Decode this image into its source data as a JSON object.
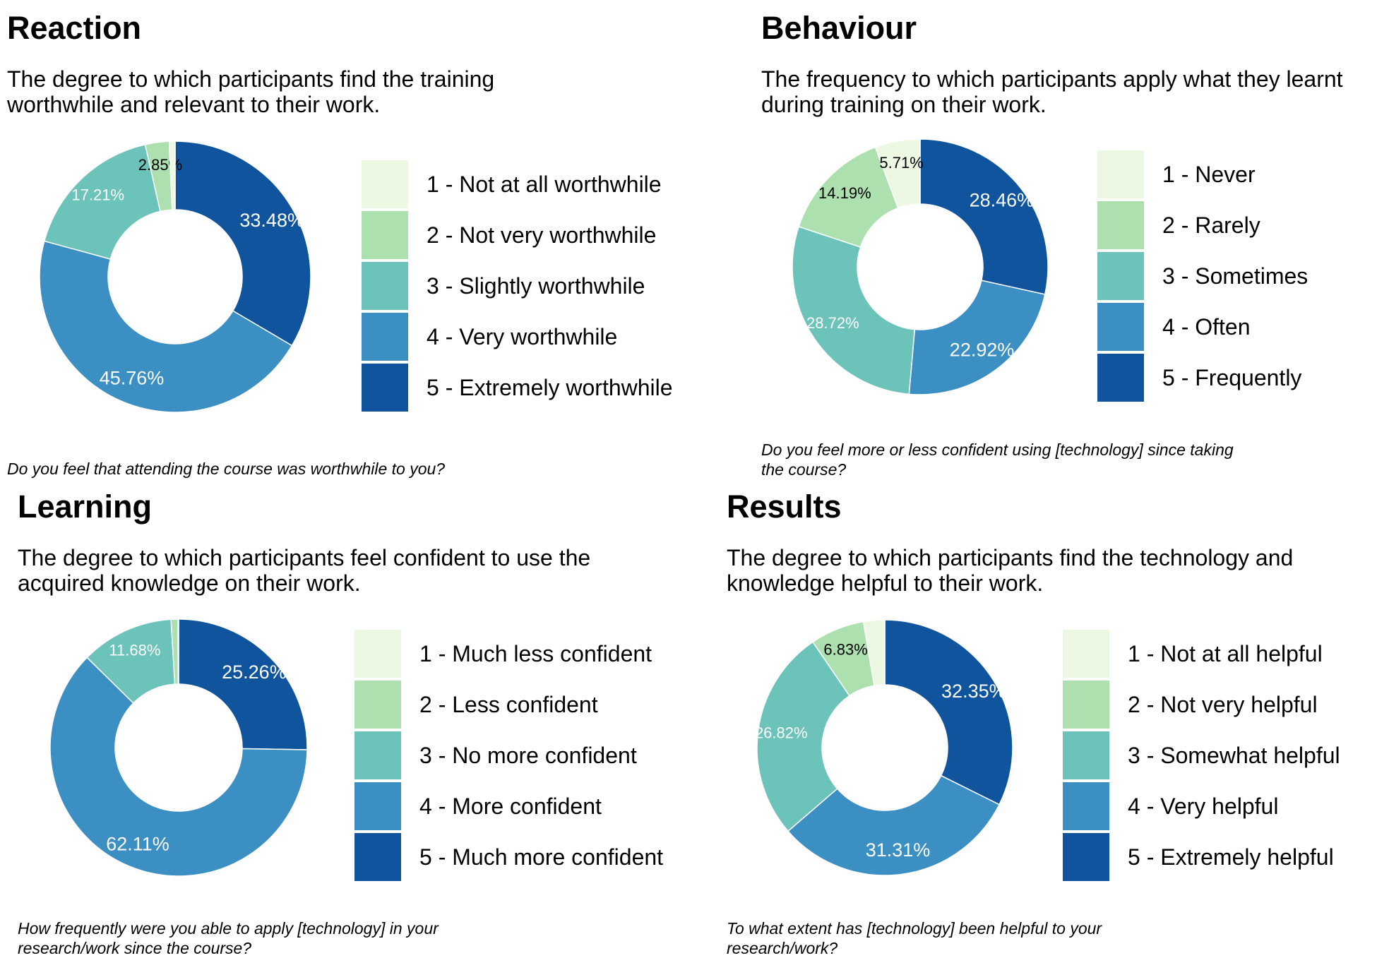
{
  "panels": [
    {
      "id": "reaction",
      "title": "Reaction",
      "subtitle": "The degree to which participants find the training worthwhile and relevant to their work.",
      "question": "Do you feel that attending the course was worthwhile to you?",
      "legend": [
        {
          "label": "1 - Not at all worthwhile"
        },
        {
          "label": "2 - Not very worthwhile"
        },
        {
          "label": "3 - Slightly worthwhile"
        },
        {
          "label": "4 - Very worthwhile"
        },
        {
          "label": "5 - Extremely worthwhile"
        }
      ]
    },
    {
      "id": "behaviour",
      "title": "Behaviour",
      "subtitle": "The frequency to which participants apply what they learnt during training on their work.",
      "question": "Do you feel more or less confident using [technology] since taking the course?",
      "legend": [
        {
          "label": "1 - Never"
        },
        {
          "label": "2 - Rarely"
        },
        {
          "label": "3 - Sometimes"
        },
        {
          "label": "4 - Often"
        },
        {
          "label": "5 - Frequently"
        }
      ]
    },
    {
      "id": "learning",
      "title": "Learning",
      "subtitle": "The degree to which participants feel confident to use the acquired knowledge on their work.",
      "question": "How frequently were you able to apply [technology] in your research/work since the course?",
      "legend": [
        {
          "label": "1 - Much less confident"
        },
        {
          "label": "2 - Less confident"
        },
        {
          "label": "3 - No more confident"
        },
        {
          "label": "4 - More confident"
        },
        {
          "label": "5 - Much more confident"
        }
      ]
    },
    {
      "id": "results",
      "title": "Results",
      "subtitle": "The degree to which participants find the technology and knowledge helpful to their work.",
      "question": "To what extent has [technology] been helpful to your research/work?",
      "legend": [
        {
          "label": "1 - Not at all helpful"
        },
        {
          "label": "2 - Not very helpful"
        },
        {
          "label": "3 - Somewhat helpful"
        },
        {
          "label": "4 - Very helpful"
        },
        {
          "label": "5 - Extremely helpful"
        }
      ]
    }
  ],
  "colors": [
    "#edf8e3",
    "#ade0af",
    "#6cc3b9",
    "#3b8fc2",
    "#10549d"
  ],
  "label_text_colors": [
    "#000000",
    "#000000",
    "#ffffff",
    "#ffffff",
    "#ffffff"
  ],
  "chart_data": [
    {
      "type": "pie",
      "title": "Reaction",
      "categories": [
        "1 - Not at all worthwhile",
        "2 - Not very worthwhile",
        "3 - Slightly worthwhile",
        "4 - Very worthwhile",
        "5 - Extremely worthwhile"
      ],
      "values": [
        0.7,
        2.85,
        17.21,
        45.76,
        33.48
      ],
      "data_labels": [
        "",
        "2.85%",
        "17.21%",
        "45.76%",
        "33.48%"
      ],
      "start": "12 o'clock",
      "direction": "clockwise, category 5 first",
      "hole": "donut",
      "legend": "right"
    },
    {
      "type": "pie",
      "title": "Behaviour",
      "categories": [
        "1 - Never",
        "2 - Rarely",
        "3 - Sometimes",
        "4 - Often",
        "5 - Frequently"
      ],
      "values": [
        5.71,
        14.19,
        28.72,
        22.92,
        28.46
      ],
      "data_labels": [
        "5.71%",
        "14.19%",
        "28.72%",
        "22.92%",
        "28.46%"
      ],
      "start": "12 o'clock",
      "direction": "clockwise, category 5 first",
      "hole": "donut",
      "legend": "right"
    },
    {
      "type": "pie",
      "title": "Learning",
      "categories": [
        "1 - Much less confident",
        "2 - Less confident",
        "3 - No more confident",
        "4 - More confident",
        "5 - Much more confident"
      ],
      "values": [
        0.1,
        0.85,
        11.68,
        62.11,
        25.26
      ],
      "data_labels": [
        "",
        "",
        "11.68%",
        "62.11%",
        "25.26%"
      ],
      "start": "12 o'clock",
      "direction": "clockwise, category 5 first",
      "hole": "donut",
      "legend": "right"
    },
    {
      "type": "pie",
      "title": "Results",
      "categories": [
        "1 - Not at all helpful",
        "2 - Not very helpful",
        "3 - Somewhat helpful",
        "4 - Very helpful",
        "5 - Extremely helpful"
      ],
      "values": [
        2.69,
        6.83,
        26.82,
        31.31,
        32.35
      ],
      "data_labels": [
        "",
        "6.83%",
        "26.82%",
        "31.31%",
        "32.35%"
      ],
      "start": "12 o'clock",
      "direction": "clockwise, category 5 first",
      "hole": "donut",
      "legend": "right"
    }
  ]
}
